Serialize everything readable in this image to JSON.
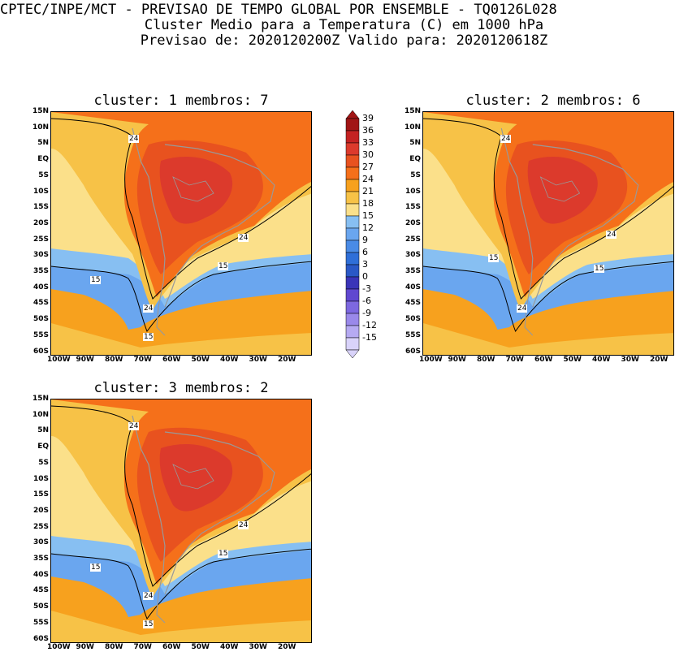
{
  "title": {
    "line1": "CPTEC/INPE/MCT - PREVISAO DE TEMPO GLOBAL POR ENSEMBLE - TQ0126L028",
    "line2": "Cluster Medio para a Temperatura (C) em 1000 hPa",
    "line3": "Previsao de: 2020120200Z   Valido para: 2020120618Z"
  },
  "lat_labels": [
    "15N",
    "10N",
    "5N",
    "EQ",
    "5S",
    "10S",
    "15S",
    "20S",
    "25S",
    "30S",
    "35S",
    "40S",
    "45S",
    "50S",
    "55S",
    "60S"
  ],
  "lon_labels": [
    "100W",
    "90W",
    "80W",
    "70W",
    "60W",
    "50W",
    "40W",
    "30W",
    "20W"
  ],
  "colorbar": {
    "values": [
      "39",
      "36",
      "33",
      "30",
      "27",
      "24",
      "21",
      "18",
      "15",
      "12",
      "9",
      "6",
      "3",
      "0",
      "-3",
      "-6",
      "-9",
      "-12",
      "-15"
    ],
    "colors": [
      "#a11515",
      "#c42222",
      "#dc3a2c",
      "#e8521f",
      "#f5701a",
      "#f7a11e",
      "#f7c247",
      "#fbe08a",
      "#87bff2",
      "#6aa6ef",
      "#4a8be6",
      "#2f6fd8",
      "#2a58c6",
      "#3a34b8",
      "#6048d0",
      "#7d68e0",
      "#9a89ea",
      "#b6aaf2",
      "#d9d3fa"
    ]
  },
  "panels": [
    {
      "title": "cluster: 1   membros: 7",
      "labels": {
        "n24_top": "24",
        "n24_right": "24",
        "n15_west": "15",
        "n15_east": "15",
        "n24_south": "24",
        "n15_south": "15"
      }
    },
    {
      "title": "cluster: 2   membros: 6",
      "labels": {
        "n24_top": "24",
        "n24_right": "24",
        "n15_west": "15",
        "n15_east": "15",
        "n24_south": "24",
        "n15_south": ""
      }
    },
    {
      "title": "cluster: 3   membros: 2",
      "labels": {
        "n24_top": "24",
        "n24_right": "24",
        "n15_west": "15",
        "n15_east": "15",
        "n24_south": "24",
        "n15_south": "15"
      }
    }
  ]
}
